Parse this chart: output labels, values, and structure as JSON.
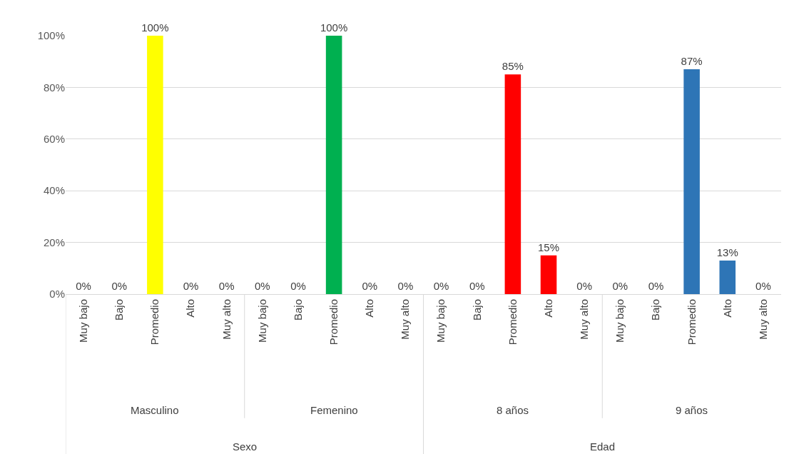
{
  "chart_data": {
    "type": "bar",
    "categories": [
      "Muy bajo",
      "Bajo",
      "Promedio",
      "Alto",
      "Muy alto",
      "Muy bajo",
      "Bajo",
      "Promedio",
      "Alto",
      "Muy alto",
      "Muy bajo",
      "Bajo",
      "Promedio",
      "Alto",
      "Muy alto",
      "Muy bajo",
      "Bajo",
      "Promedio",
      "Alto",
      "Muy alto"
    ],
    "values": [
      0,
      0,
      100,
      0,
      0,
      0,
      0,
      100,
      0,
      0,
      0,
      0,
      85,
      15,
      0,
      0,
      0,
      87,
      13,
      0
    ],
    "colors": [
      "#ffff00",
      "#ffff00",
      "#ffff00",
      "#ffff00",
      "#ffff00",
      "#00b050",
      "#00b050",
      "#00b050",
      "#00b050",
      "#00b050",
      "#ff0000",
      "#ff0000",
      "#ff0000",
      "#ff0000",
      "#ff0000",
      "#2e75b6",
      "#2e75b6",
      "#2e75b6",
      "#2e75b6",
      "#2e75b6"
    ],
    "value_labels": [
      "0%",
      "0%",
      "100%",
      "0%",
      "0%",
      "0%",
      "0%",
      "100%",
      "0%",
      "0%",
      "0%",
      "0%",
      "85%",
      "15%",
      "0%",
      "0%",
      "0%",
      "87%",
      "13%",
      "0%"
    ],
    "ylim": [
      0,
      100
    ],
    "yticks": [
      {
        "value": 0,
        "label": "0%"
      },
      {
        "value": 20,
        "label": "20%"
      },
      {
        "value": 40,
        "label": "40%"
      },
      {
        "value": 60,
        "label": "60%"
      },
      {
        "value": 80,
        "label": "80%"
      },
      {
        "value": 100,
        "label": "100%"
      }
    ],
    "grid": "y",
    "legend": false,
    "annotations": [
      "Masculino",
      "Femenino",
      "8 años",
      "9 años",
      "Sexo",
      "Edad"
    ]
  }
}
